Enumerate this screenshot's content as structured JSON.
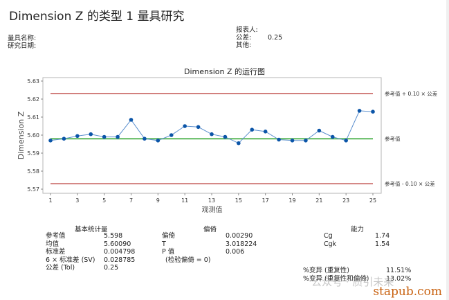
{
  "header": {
    "title": "Dimension Z 的类型 1 量具研究",
    "gauge_name_label": "量具名称:",
    "study_date_label": "研究日期:",
    "reporter_label": "报表人:",
    "tolerance_label": "公差:",
    "tolerance_value": "0.25",
    "other_label": "其他:"
  },
  "chart_data": {
    "type": "line",
    "title": "Dimension Z 的运行图",
    "xlabel": "观测值",
    "ylabel": "Dimension Z",
    "x": [
      1,
      2,
      3,
      4,
      5,
      6,
      7,
      8,
      9,
      10,
      11,
      12,
      13,
      14,
      15,
      16,
      17,
      18,
      19,
      20,
      21,
      22,
      23,
      24,
      25
    ],
    "series": [
      {
        "name": "Dimension Z",
        "color": "#0b55a8",
        "values": [
          5.597,
          5.598,
          5.5995,
          5.6005,
          5.599,
          5.599,
          5.6085,
          5.598,
          5.597,
          5.6,
          5.605,
          5.6045,
          5.6005,
          5.599,
          5.5955,
          5.603,
          5.602,
          5.5975,
          5.597,
          5.597,
          5.6025,
          5.599,
          5.597,
          5.6135,
          5.613
        ]
      }
    ],
    "reference_lines": [
      {
        "label": "参考值 + 0.10 × 公差",
        "value": 5.623,
        "color": "#c0504d"
      },
      {
        "label": "参考值",
        "value": 5.598,
        "color": "#5cb85c"
      },
      {
        "label": "参考值 - 0.10 × 公差",
        "value": 5.573,
        "color": "#c0504d"
      }
    ],
    "x_ticks": [
      "1",
      "3",
      "5",
      "7",
      "9",
      "11",
      "13",
      "15",
      "17",
      "19",
      "21",
      "23",
      "25"
    ],
    "y_ticks": [
      "5.57",
      "5.58",
      "5.59",
      "5.60",
      "5.61",
      "5.62",
      "5.63"
    ],
    "ylim": [
      5.57,
      5.63
    ],
    "xlim": [
      1,
      25
    ],
    "grid": false,
    "legend": "right labels"
  },
  "stats": {
    "basic": {
      "title": "基本统计量",
      "rows": [
        {
          "label": "参考值",
          "value": "5.598"
        },
        {
          "label": "均值",
          "value": "5.60090"
        },
        {
          "label": "标准差",
          "value": "0.004798"
        },
        {
          "label": "6 × 标准差 (SV)",
          "value": "0.028785"
        },
        {
          "label": "公差 (Tol)",
          "value": "0.25"
        }
      ]
    },
    "bias": {
      "title": "偏倚",
      "rows": [
        {
          "label": "偏倚",
          "value": "0.00290"
        },
        {
          "label": "T",
          "value": "3.018224"
        },
        {
          "label": "P 值",
          "value": "0.006"
        }
      ],
      "note": "(检验偏倚 = 0)"
    },
    "capability": {
      "title": "能力",
      "rows": [
        {
          "label": "Cg",
          "value": "1.74"
        },
        {
          "label": "Cgk",
          "value": "1.54"
        }
      ]
    },
    "variation": [
      {
        "label": "%变异 (重复性)",
        "value": "11.51%"
      },
      {
        "label": "%变异 (重复性和偏倚)",
        "value": "13.02%"
      }
    ]
  },
  "watermark": {
    "site": "stapub.com",
    "overlay": "公众号 · 质引未来"
  }
}
